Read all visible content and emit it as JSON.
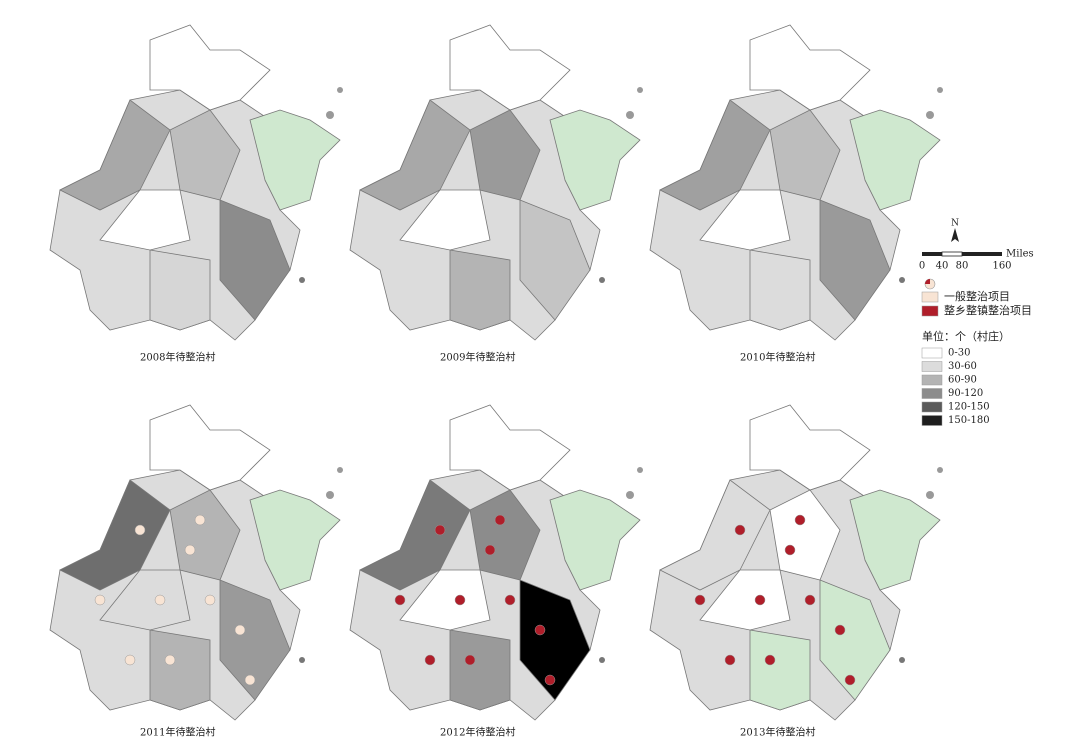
{
  "panels": [
    {
      "label": "2008年待整治村"
    },
    {
      "label": "2009年待整治村"
    },
    {
      "label": "2010年待整治村"
    },
    {
      "label": "2011年待整治村"
    },
    {
      "label": "2012年待整治村"
    },
    {
      "label": "2013年待整治村"
    }
  ],
  "legend": {
    "north": "N",
    "scale_unit": "Miles",
    "scale_labels": [
      "0",
      "40",
      "80",
      "160"
    ],
    "project_types": [
      {
        "label": "一般整治项目",
        "color": "#f8e4d4"
      },
      {
        "label": "整乡整镇整治项目",
        "color": "#b01e2a"
      }
    ],
    "count_title": "单位：个（村庄）",
    "classes": [
      {
        "label": "0-30",
        "color": "#ffffff"
      },
      {
        "label": "30-60",
        "color": "#dcdcdc"
      },
      {
        "label": "60-90",
        "color": "#b4b4b4"
      },
      {
        "label": "90-120",
        "color": "#8c8c8c"
      },
      {
        "label": "120-150",
        "color": "#5a5a5a"
      },
      {
        "label": "150-180",
        "color": "#1e1e1e"
      }
    ]
  }
}
